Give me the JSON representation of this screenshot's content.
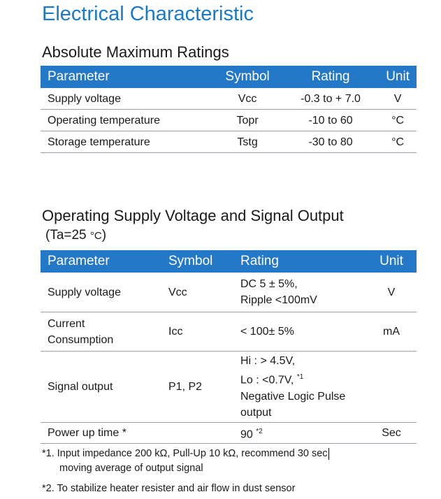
{
  "title": "Electrical Characteristic",
  "section1": {
    "heading": "Absolute Maximum Ratings",
    "headers": [
      "Parameter",
      "Symbol",
      "Rating",
      "Unit"
    ],
    "rows": [
      [
        "Supply voltage",
        "Vcc",
        "-0.3 to + 7.0",
        "V"
      ],
      [
        "Operating temperature",
        "Topr",
        "-10 to 60",
        "°C"
      ],
      [
        "Storage temperature",
        "Tstg",
        "-30 to 80",
        "°C"
      ]
    ]
  },
  "section2": {
    "heading": "Operating Supply Voltage and Signal Output",
    "condition_prefix": "(Ta=25 ",
    "condition_unit": "°C",
    "condition_suffix": ")",
    "headers": [
      "Parameter",
      "Symbol",
      "Rating",
      "Unit"
    ],
    "rows": [
      {
        "parameter": [
          "Supply voltage"
        ],
        "symbol": "Vcc",
        "rating": [
          "DC 5 ± 5%,",
          "Ripple <100mV"
        ],
        "unit": "V"
      },
      {
        "parameter": [
          "Current",
          "Consumption"
        ],
        "symbol": "Icc",
        "rating": [
          "< 100± 5%"
        ],
        "unit": "mA"
      },
      {
        "parameter": [
          "Signal output"
        ],
        "symbol": "P1, P2",
        "rating": [
          "Hi : > 4.5V,",
          "Lo : <0.7V,",
          "Negative Logic Pulse",
          "output"
        ],
        "rating_note": "*1",
        "unit": ""
      },
      {
        "parameter": [
          "Power up time *"
        ],
        "symbol": "",
        "rating": [
          "90"
        ],
        "rating_note": "*2",
        "unit": "Sec"
      }
    ]
  },
  "notes": [
    {
      "line1": "*1.  Input impedance 200 kΩ, Pull-Up 10 kΩ, recommend 30 sec",
      "line2": "moving average of output signal"
    },
    {
      "line1": "*2. To stabilize heater resister and air flow in dust sensor"
    }
  ]
}
